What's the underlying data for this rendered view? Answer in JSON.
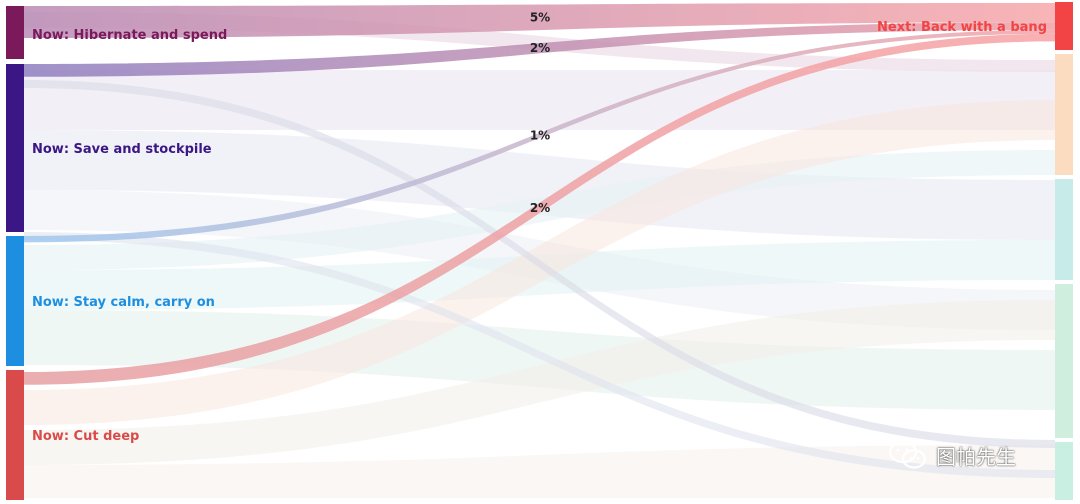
{
  "chart_data": {
    "type": "sankey",
    "sources": [
      {
        "id": "hib",
        "label": "Now: Hibernate and spend",
        "color": "#7a1a5a"
      },
      {
        "id": "save",
        "label": "Now: Save and stockpile",
        "color": "#3b1685"
      },
      {
        "id": "calm",
        "label": "Now: Stay calm, carry on",
        "color": "#1e8fe0"
      },
      {
        "id": "cut",
        "label": "Now: Cut deep",
        "color": "#d94b4b"
      }
    ],
    "targets": [
      {
        "id": "bang",
        "label": "Next: Back with a bang",
        "color": "#f24444"
      },
      {
        "id": "t2",
        "label": "",
        "color": "#fbdcc0"
      },
      {
        "id": "t3",
        "label": "",
        "color": "#c6ebe8"
      },
      {
        "id": "t4",
        "label": "",
        "color": "#cfeedd"
      },
      {
        "id": "t5",
        "label": "",
        "color": "#c9eee2"
      }
    ],
    "highlighted_flows": [
      {
        "source": "hib",
        "target": "bang",
        "value": 5,
        "label": "5%"
      },
      {
        "source": "save",
        "target": "bang",
        "value": 2,
        "label": "2%"
      },
      {
        "source": "calm",
        "target": "bang",
        "value": 1,
        "label": "1%"
      },
      {
        "source": "cut",
        "target": "bang",
        "value": 2,
        "label": "2%"
      }
    ]
  },
  "watermark": {
    "text": "图帕先生",
    "icon": "wechat-icon"
  }
}
